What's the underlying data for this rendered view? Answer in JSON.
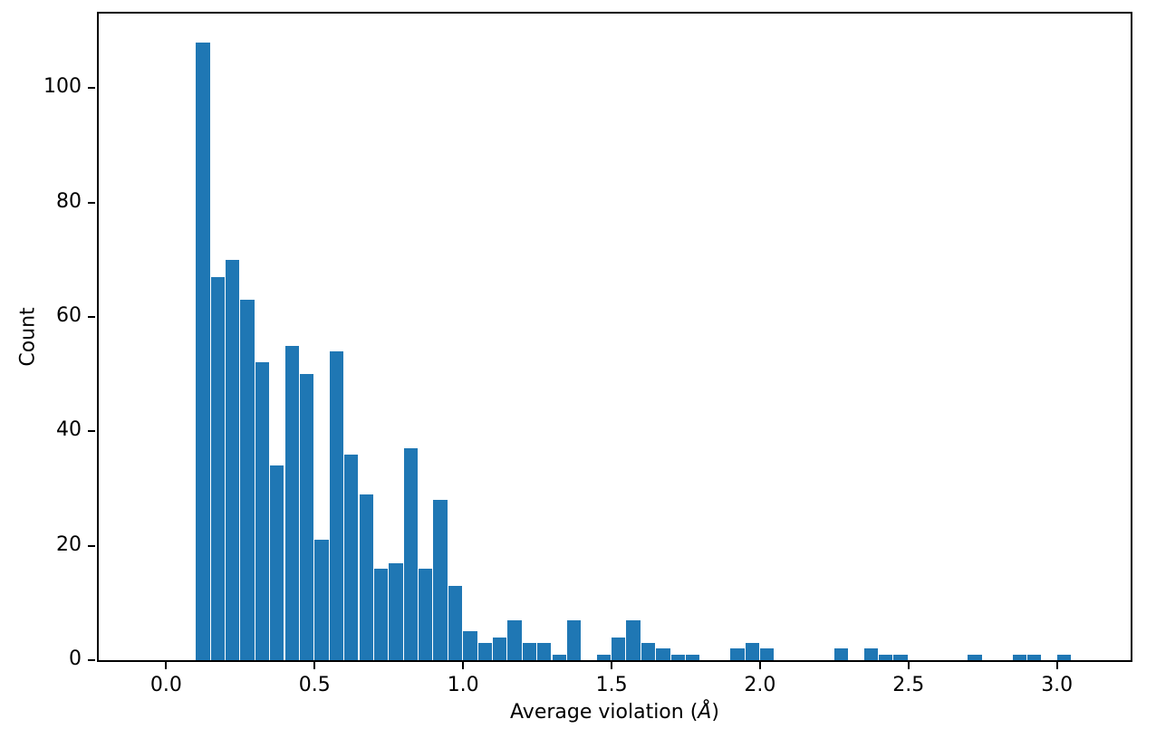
{
  "figure": {
    "background": "#ffffff"
  },
  "chart_data": {
    "type": "bar",
    "subtype": "histogram",
    "title": "",
    "xlabel": "Average violation (Å)",
    "xlabel_parts": {
      "prefix": "Average violation (",
      "angstrom": "Å",
      "suffix": ")"
    },
    "ylabel": "Count",
    "bar_color": "#1f77b4",
    "bar_gap_color": "#ffffff",
    "axis_color": "#000000",
    "grid": false,
    "legend": null,
    "bin_width": 0.05,
    "bin_starts": [
      0.1,
      0.15,
      0.2,
      0.25,
      0.3,
      0.35,
      0.4,
      0.45,
      0.5,
      0.55,
      0.6,
      0.65,
      0.7,
      0.75,
      0.8,
      0.85,
      0.9,
      0.95,
      1.0,
      1.05,
      1.1,
      1.15,
      1.2,
      1.25,
      1.3,
      1.35,
      1.4,
      1.45,
      1.5,
      1.55,
      1.6,
      1.65,
      1.7,
      1.75,
      1.8,
      1.85,
      1.9,
      1.95,
      2.0,
      2.05,
      2.1,
      2.15,
      2.2,
      2.25,
      2.3,
      2.35,
      2.4,
      2.45,
      2.5,
      2.55,
      2.6,
      2.65,
      2.7,
      2.75,
      2.8,
      2.85,
      2.9,
      2.95,
      3.0
    ],
    "counts": [
      108,
      67,
      70,
      63,
      52,
      34,
      55,
      50,
      21,
      54,
      36,
      29,
      16,
      17,
      37,
      16,
      28,
      13,
      5,
      3,
      4,
      7,
      3,
      3,
      1,
      7,
      0,
      1,
      4,
      7,
      3,
      2,
      1,
      1,
      0,
      0,
      2,
      3,
      2,
      0,
      0,
      0,
      0,
      2,
      0,
      2,
      1,
      1,
      0,
      0,
      0,
      0,
      1,
      0,
      0,
      1,
      1,
      0,
      1
    ],
    "x_ticks": [
      0.0,
      0.5,
      1.0,
      1.5,
      2.0,
      2.5,
      3.0
    ],
    "x_tick_labels": [
      "0.0",
      "0.5",
      "1.0",
      "1.5",
      "2.0",
      "2.5",
      "3.0"
    ],
    "y_ticks": [
      0,
      20,
      40,
      60,
      80,
      100
    ],
    "y_tick_labels": [
      "0",
      "20",
      "40",
      "60",
      "80",
      "100"
    ],
    "xlim": [
      -0.227,
      3.248
    ],
    "ylim": [
      0,
      113
    ]
  }
}
